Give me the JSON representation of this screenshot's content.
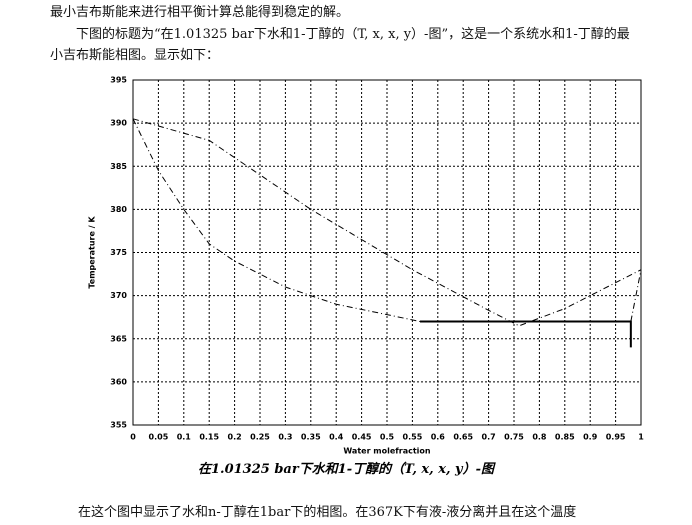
{
  "paragraphs": [
    "最小吉布斯能来进行相平衡计算总能得到稳定的解。",
    "下图的标题为“在1.01325 bar下水和1-丁醇的（T, x, x, y）-图”，这是一个系统水和1-丁醇的最小吉布斯能相图。显示如下：",
    "在这个图中显示了水和n-丁醇在1bar下的相图。在367K下有液-液分离并且在这个温度"
  ],
  "caption": "在1.01325 bar下水和1-丁醇的（T, x, x, y）-图",
  "chart_data": {
    "type": "line",
    "xlabel": "Water molefraction",
    "ylabel": "Temperature / K",
    "xlim": [
      0,
      1
    ],
    "xticks": [
      0,
      0.05,
      0.1,
      0.15,
      0.2,
      0.25,
      0.3,
      0.35,
      0.4,
      0.45,
      0.5,
      0.55,
      0.6,
      0.65,
      0.7,
      0.75,
      0.8,
      0.85,
      0.9,
      0.95,
      1
    ],
    "ylim": [
      355,
      395
    ],
    "yticks": [
      355,
      360,
      365,
      370,
      375,
      380,
      385,
      390,
      395
    ],
    "grid": true,
    "series": [
      {
        "color": "#000000",
        "dash": "dashdot",
        "x": [
          0,
          0.15,
          0.35,
          0.55,
          0.7,
          0.76,
          0.85,
          0.9,
          1
        ],
        "values": [
          390.5,
          388,
          380,
          373,
          368.3,
          366.5,
          368.5,
          370,
          373
        ]
      },
      {
        "color": "#000000",
        "dash": "dashdot",
        "x": [
          0,
          0.05,
          0.1,
          0.15,
          0.2,
          0.3,
          0.4,
          0.5,
          0.565
        ],
        "values": [
          390.5,
          384.5,
          380,
          376,
          374,
          371,
          369,
          367.8,
          367
        ]
      },
      {
        "color": "#000000",
        "dash": "dashdot",
        "x": [
          0.98,
          1
        ],
        "values": [
          367,
          373
        ]
      },
      {
        "color": "#000000",
        "dash": "solid",
        "x": [
          0.565,
          0.98,
          0.98
        ],
        "values": [
          367,
          367,
          364
        ]
      }
    ]
  }
}
